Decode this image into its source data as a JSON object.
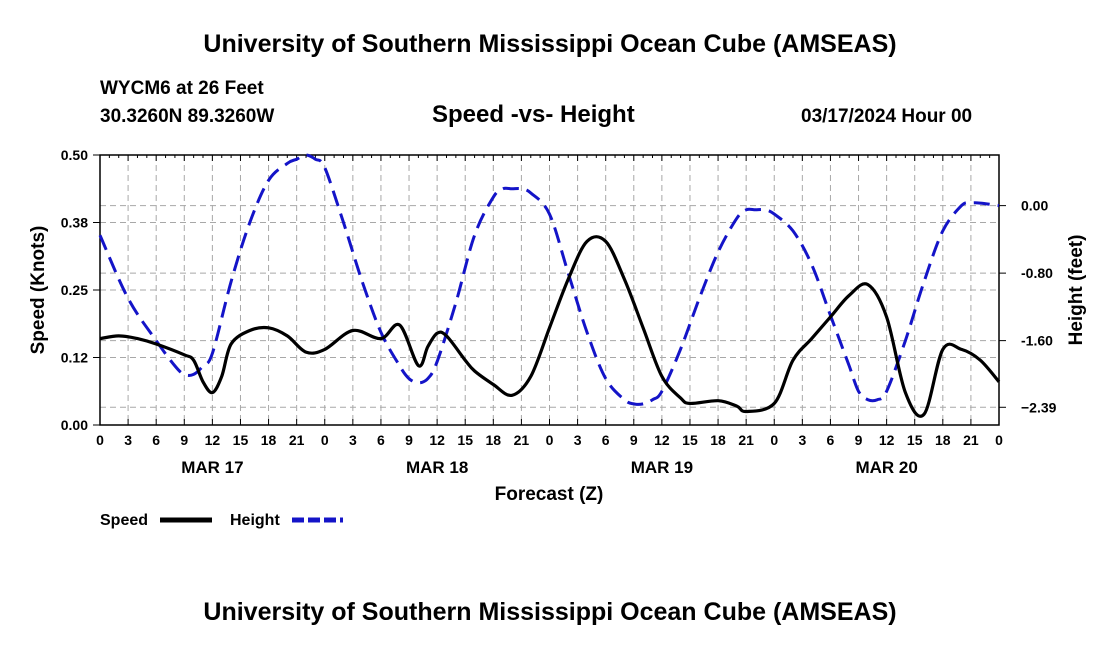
{
  "header": {
    "title_top": "University of Southern Mississippi Ocean Cube (AMSEAS)",
    "title_bottom": "University of Southern Mississippi Ocean Cube (AMSEAS)",
    "station": "WYCM6 at 26 Feet",
    "coordinates": "30.3260N  89.3260W",
    "datetime": "03/17/2024 Hour 00"
  },
  "chart_data": {
    "type": "line",
    "title": "Speed -vs- Height",
    "xlabel": "Forecast (Z)",
    "ylabel_left": "Speed (Knots)",
    "ylabel_right": "Height (feet)",
    "x_range": [
      0,
      96
    ],
    "ylim_left": [
      0.0,
      0.5
    ],
    "ylim_right": [
      -2.6,
      0.6
    ],
    "x_tick_values": [
      0,
      3,
      6,
      9,
      12,
      15,
      18,
      21,
      24,
      27,
      30,
      33,
      36,
      39,
      42,
      45,
      48,
      51,
      54,
      57,
      60,
      63,
      66,
      69,
      72,
      75,
      78,
      81,
      84,
      87,
      90,
      93,
      96
    ],
    "x_tick_labels": [
      "0",
      "3",
      "6",
      "9",
      "12",
      "15",
      "18",
      "21",
      "0",
      "3",
      "6",
      "9",
      "12",
      "15",
      "18",
      "21",
      "0",
      "3",
      "6",
      "9",
      "12",
      "15",
      "18",
      "21",
      "0",
      "3",
      "6",
      "9",
      "12",
      "15",
      "18",
      "21",
      "0"
    ],
    "date_labels": [
      {
        "text": "MAR 17",
        "x": 12
      },
      {
        "text": "MAR 18",
        "x": 36
      },
      {
        "text": "MAR 19",
        "x": 60
      },
      {
        "text": "MAR 20",
        "x": 84
      }
    ],
    "y_left_ticks": [
      {
        "value": 0.0,
        "label": "0.00"
      },
      {
        "value": 0.125,
        "label": "0.12"
      },
      {
        "value": 0.25,
        "label": "0.25"
      },
      {
        "value": 0.375,
        "label": "0.38"
      },
      {
        "value": 0.5,
        "label": "0.50"
      }
    ],
    "y_right_ticks": [
      {
        "value": 0.0,
        "label": "0.00"
      },
      {
        "value": -0.8,
        "label": "-0.80"
      },
      {
        "value": -1.6,
        "label": "-1.60"
      },
      {
        "value": -2.39,
        "label": "−2.39"
      }
    ],
    "grid": true,
    "legend_position": "bottom-left",
    "series": [
      {
        "name": "Speed",
        "axis": "left",
        "color": "#000000",
        "dash": "solid",
        "x": [
          0,
          2,
          4,
          6,
          9,
          10,
          11,
          12,
          13,
          14,
          16,
          18,
          20,
          22,
          24,
          27,
          30,
          32,
          34,
          35,
          36,
          37,
          39,
          40,
          42,
          44,
          46,
          48,
          50,
          52,
          54,
          56,
          58,
          60,
          62,
          63,
          66,
          68,
          69,
          72,
          74,
          76,
          78,
          80,
          82,
          84,
          86,
          88,
          90,
          92,
          94,
          96
        ],
        "y": [
          0.16,
          0.165,
          0.16,
          0.15,
          0.13,
          0.12,
          0.08,
          0.06,
          0.09,
          0.15,
          0.175,
          0.18,
          0.165,
          0.135,
          0.14,
          0.175,
          0.16,
          0.185,
          0.11,
          0.145,
          0.17,
          0.165,
          0.12,
          0.1,
          0.075,
          0.055,
          0.09,
          0.18,
          0.27,
          0.34,
          0.34,
          0.27,
          0.18,
          0.09,
          0.05,
          0.04,
          0.045,
          0.035,
          0.025,
          0.04,
          0.12,
          0.16,
          0.2,
          0.24,
          0.26,
          0.2,
          0.06,
          0.02,
          0.14,
          0.14,
          0.12,
          0.08
        ]
      },
      {
        "name": "Height",
        "axis": "right",
        "color": "#1414c8",
        "dash": "dashed",
        "x": [
          0,
          3,
          6,
          8,
          9,
          10,
          11,
          12,
          14,
          16,
          18,
          20,
          21,
          22,
          23,
          24,
          26,
          28,
          30,
          32,
          33,
          34,
          35,
          36,
          38,
          40,
          42,
          43,
          44,
          45,
          46,
          48,
          50,
          52,
          54,
          56,
          57,
          58,
          59,
          60,
          62,
          64,
          66,
          68,
          69,
          70,
          71,
          72,
          74,
          76,
          78,
          80,
          81,
          82,
          83,
          84,
          86,
          88,
          90,
          92,
          93,
          94,
          96
        ],
        "y": [
          -0.35,
          -1.1,
          -1.6,
          -1.9,
          -2.0,
          -2.0,
          -1.9,
          -1.75,
          -0.9,
          -0.2,
          0.3,
          0.5,
          0.55,
          0.6,
          0.55,
          0.45,
          -0.2,
          -0.9,
          -1.5,
          -1.9,
          -2.05,
          -2.1,
          -2.05,
          -1.85,
          -1.15,
          -0.35,
          0.1,
          0.2,
          0.2,
          0.2,
          0.15,
          -0.1,
          -0.8,
          -1.5,
          -2.05,
          -2.3,
          -2.35,
          -2.35,
          -2.3,
          -2.2,
          -1.7,
          -1.1,
          -0.55,
          -0.15,
          -0.05,
          -0.05,
          -0.05,
          -0.1,
          -0.3,
          -0.7,
          -1.3,
          -1.9,
          -2.2,
          -2.3,
          -2.3,
          -2.2,
          -1.6,
          -0.9,
          -0.3,
          0.0,
          0.03,
          0.03,
          0.0
        ]
      }
    ]
  }
}
